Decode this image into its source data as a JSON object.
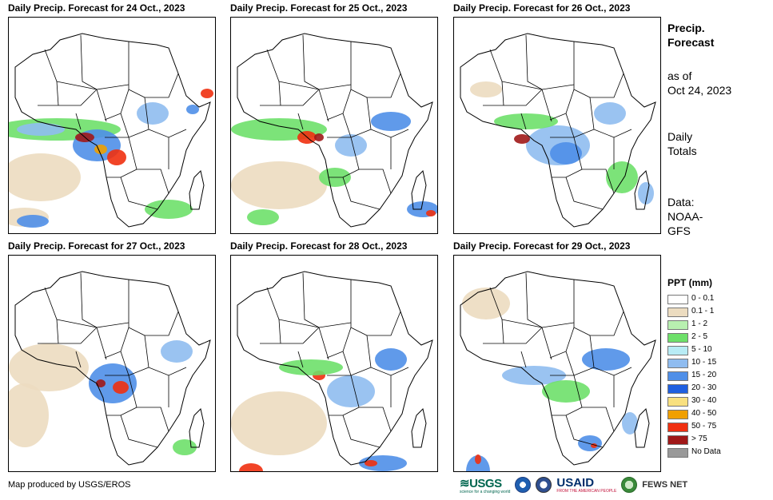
{
  "panels": [
    {
      "title": "Daily Precip. Forecast for 24 Oct., 2023"
    },
    {
      "title": "Daily Precip. Forecast for 25 Oct., 2023"
    },
    {
      "title": "Daily Precip. Forecast for 26 Oct., 2023"
    },
    {
      "title": "Daily Precip. Forecast for 27 Oct., 2023"
    },
    {
      "title": "Daily Precip. Forecast for 28 Oct., 2023"
    },
    {
      "title": "Daily Precip. Forecast for 29 Oct., 2023"
    }
  ],
  "side": {
    "heading_line1": "Precip.",
    "heading_line2": "Forecast",
    "asof_line1": "as of",
    "asof_line2": "Oct 24, 2023",
    "totals_line1": "Daily",
    "totals_line2": "Totals",
    "data_line1": "Data:",
    "data_line2": "NOAA-",
    "data_line3": "GFS"
  },
  "legend": {
    "title": "PPT (mm)",
    "items": [
      {
        "label": "0 - 0.1",
        "color": "#ffffff"
      },
      {
        "label": "0.1 - 1",
        "color": "#ecdcc0"
      },
      {
        "label": "1 - 2",
        "color": "#b8f0b0"
      },
      {
        "label": "2 - 5",
        "color": "#6ee06a"
      },
      {
        "label": "5 - 10",
        "color": "#b8ecf5"
      },
      {
        "label": "10 - 15",
        "color": "#8fbcf0"
      },
      {
        "label": "15 - 20",
        "color": "#4f8fe8"
      },
      {
        "label": "20 - 30",
        "color": "#1f5fe0"
      },
      {
        "label": "30 - 40",
        "color": "#f8e080"
      },
      {
        "label": "40 - 50",
        "color": "#f0a000"
      },
      {
        "label": "50 - 75",
        "color": "#f03010"
      },
      {
        "label": "> 75",
        "color": "#a01818"
      },
      {
        "label": "No Data",
        "color": "#999999"
      }
    ]
  },
  "credit": "Map produced by USGS/EROS",
  "logos": {
    "usgs": "USGS",
    "usgs_tagline": "science for a changing world",
    "usaid": "USAID",
    "usaid_tagline": "FROM THE AMERICAN PEOPLE",
    "fews": "FEWS NET"
  }
}
